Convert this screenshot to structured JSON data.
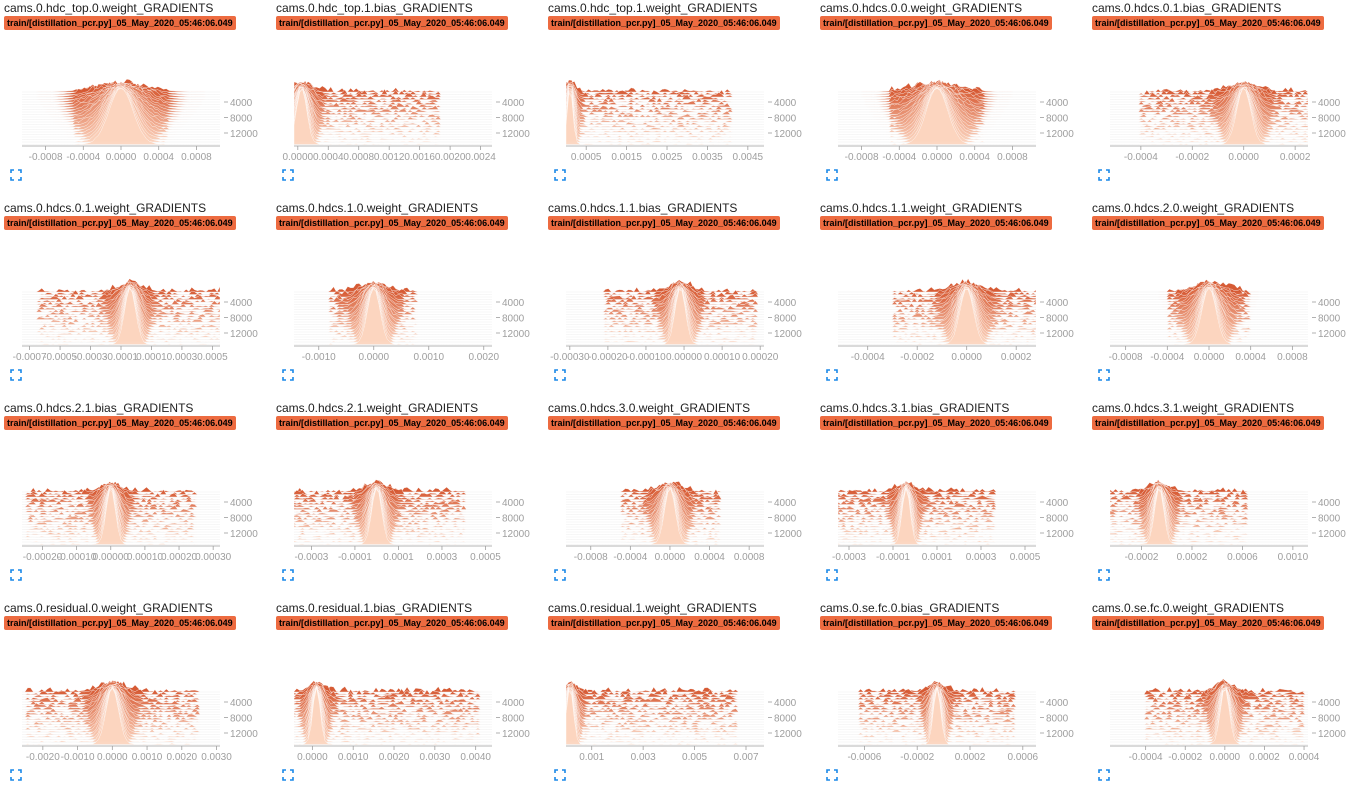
{
  "run_tag": "train/[distillation_pcr.py]_05_May_2020_05:46:06.049",
  "icons": {
    "expand": "expand-icon"
  },
  "colors": {
    "badge": "#ed6b40",
    "dark": "#d4522a",
    "light": "#fcd5bf",
    "axis": "#9e9e9e"
  },
  "chart_data": [
    {
      "type": "histogram-offset",
      "title": "cams.0.hdc_top.0.weight_GRADIENTS",
      "xlim": [
        -0.00105,
        0.00105
      ],
      "center": 0.0,
      "width": 0.00028,
      "spread": 0.0005,
      "xticks": [
        -0.0008,
        -0.0004,
        0.0,
        0.0004,
        0.0008
      ],
      "xtick_labels": [
        "-0.0008",
        "-0.0004",
        "0.0000",
        "0.0004",
        "0.0008"
      ],
      "ylabels": [
        "4000",
        "8000",
        "12000"
      ]
    },
    {
      "type": "histogram-offset",
      "title": "cams.0.hdc_top.1.bias_GRADIENTS",
      "xlim": [
        -5e-05,
        0.00255
      ],
      "center": 5e-05,
      "width": 0.00015,
      "spread": 0.0018,
      "xticks": [
        0.0,
        0.0004,
        0.0008,
        0.0012,
        0.0016,
        0.002,
        0.0024
      ],
      "xtick_labels": [
        "0.0000",
        "0.0004",
        "0.0008",
        "0.0012",
        "0.0016",
        "0.0020",
        "0.0024"
      ],
      "ylabels": [
        "4000",
        "8000",
        "12000"
      ]
    },
    {
      "type": "histogram-offset",
      "title": "cams.0.hdc_top.1.weight_GRADIENTS",
      "xlim": [
        0.0,
        0.0049
      ],
      "center": 0.0001,
      "width": 0.00015,
      "spread": 0.004,
      "xticks": [
        0.0005,
        0.0015,
        0.0025,
        0.0035,
        0.0045
      ],
      "xtick_labels": [
        "0.0005",
        "0.0015",
        "0.0025",
        "0.0035",
        "0.0045"
      ],
      "ylabels": [
        "4000",
        "8000",
        "12000"
      ]
    },
    {
      "type": "histogram-offset",
      "title": "cams.0.hdcs.0.0.weight_GRADIENTS",
      "xlim": [
        -0.00105,
        0.00105
      ],
      "center": 0.0,
      "width": 0.00025,
      "spread": 0.0005,
      "xticks": [
        -0.0008,
        -0.0004,
        0.0,
        0.0004,
        0.0008
      ],
      "xtick_labels": [
        "-0.0008",
        "-0.0004",
        "0.0000",
        "0.0004",
        "0.0008"
      ],
      "ylabels": [
        "4000",
        "8000",
        "12000"
      ]
    },
    {
      "type": "histogram-offset",
      "title": "cams.0.hdcs.0.1.bias_GRADIENTS",
      "xlim": [
        -0.00052,
        0.00025
      ],
      "center": 0.0,
      "width": 6e-05,
      "spread": 0.0004,
      "xticks": [
        -0.0004,
        -0.0002,
        0.0,
        0.0002
      ],
      "xtick_labels": [
        "-0.0004",
        "-0.0002",
        "0.0000",
        "0.0002"
      ],
      "ylabels": [
        "4000",
        "8000",
        "12000"
      ]
    },
    {
      "type": "histogram-offset",
      "title": "cams.0.hdcs.0.1.weight_GRADIENTS",
      "xlim": [
        -0.00075,
        0.00055
      ],
      "center": -4e-05,
      "width": 8e-05,
      "spread": 0.0006,
      "xticks": [
        -0.0007,
        -0.0005,
        -0.0003,
        -0.0001,
        0.0001,
        0.0003,
        0.0005
      ],
      "xtick_labels": [
        "-0.0007",
        "-0.0005",
        "-0.0003",
        "-0.0001",
        "0.0001",
        "0.0003",
        "0.0005"
      ],
      "ylabels": [
        "4000",
        "8000",
        "12000"
      ]
    },
    {
      "type": "histogram-offset",
      "title": "cams.0.hdcs.1.0.weight_GRADIENTS",
      "xlim": [
        -0.00145,
        0.00215
      ],
      "center": 0.0,
      "width": 0.00025,
      "spread": 0.0008,
      "xticks": [
        -0.001,
        0.0,
        0.001,
        0.002
      ],
      "xtick_labels": [
        "-0.0010",
        "0.0000",
        "0.0010",
        "0.0020"
      ],
      "ylabels": [
        "4000",
        "8000",
        "12000"
      ]
    },
    {
      "type": "histogram-offset",
      "title": "cams.0.hdcs.1.1.bias_GRADIENTS",
      "xlim": [
        -0.00031,
        0.00021
      ],
      "center": -1e-05,
      "width": 3e-05,
      "spread": 0.0002,
      "xticks": [
        -0.0003,
        -0.0002,
        -0.0001,
        0.0,
        0.0001,
        0.0002
      ],
      "xtick_labels": [
        "-0.00030",
        "-0.00020",
        "-0.00010",
        "0.00000",
        "0.00010",
        "0.00020"
      ],
      "ylabels": [
        "4000",
        "8000",
        "12000"
      ]
    },
    {
      "type": "histogram-offset",
      "title": "cams.0.hdcs.1.1.weight_GRADIENTS",
      "xlim": [
        -0.00052,
        0.00028
      ],
      "center": 0.0,
      "width": 6e-05,
      "spread": 0.0003,
      "xticks": [
        -0.0004,
        -0.0002,
        0.0,
        0.0002
      ],
      "xtick_labels": [
        "-0.0004",
        "-0.0002",
        "0.0000",
        "0.0002"
      ],
      "ylabels": [
        "4000",
        "8000",
        "12000"
      ]
    },
    {
      "type": "histogram-offset",
      "title": "cams.0.hdcs.2.0.weight_GRADIENTS",
      "xlim": [
        -0.00095,
        0.00095
      ],
      "center": 0.0,
      "width": 0.00015,
      "spread": 0.0004,
      "xticks": [
        -0.0008,
        -0.0004,
        0.0,
        0.0004,
        0.0008
      ],
      "xtick_labels": [
        "-0.0008",
        "-0.0004",
        "0.0000",
        "0.0004",
        "0.0008"
      ],
      "ylabels": [
        "4000",
        "8000",
        "12000"
      ]
    },
    {
      "type": "histogram-offset",
      "title": "cams.0.hdcs.2.1.bias_GRADIENTS",
      "xlim": [
        -0.00026,
        0.00032
      ],
      "center": 0.0,
      "width": 3e-05,
      "spread": 0.00025,
      "xticks": [
        -0.0002,
        -0.0001,
        0.0,
        0.0001,
        0.0002,
        0.0003
      ],
      "xtick_labels": [
        "-0.00020",
        "-0.00010",
        "0.00000",
        "0.00010",
        "0.00020",
        "0.00030"
      ],
      "ylabels": [
        "4000",
        "8000",
        "12000"
      ]
    },
    {
      "type": "histogram-offset",
      "title": "cams.0.hdcs.2.1.weight_GRADIENTS",
      "xlim": [
        -0.00038,
        0.00053
      ],
      "center": 0.0,
      "width": 5e-05,
      "spread": 0.0004,
      "xticks": [
        -0.0003,
        -0.0001,
        0.0001,
        0.0003,
        0.0005
      ],
      "xtick_labels": [
        "-0.0003",
        "-0.0001",
        "0.0001",
        "0.0003",
        "0.0005"
      ],
      "ylabels": [
        "4000",
        "8000",
        "12000"
      ]
    },
    {
      "type": "histogram-offset",
      "title": "cams.0.hdcs.3.0.weight_GRADIENTS",
      "xlim": [
        -0.00105,
        0.00095
      ],
      "center": 0.0,
      "width": 0.00012,
      "spread": 0.0005,
      "xticks": [
        -0.0008,
        -0.0004,
        0.0,
        0.0004,
        0.0008
      ],
      "xtick_labels": [
        "-0.0008",
        "-0.0004",
        "0.0000",
        "0.0004",
        "0.0008"
      ],
      "ylabels": [
        "4000",
        "8000",
        "12000"
      ]
    },
    {
      "type": "histogram-offset",
      "title": "cams.0.hdcs.3.1.bias_GRADIENTS",
      "xlim": [
        -0.00035,
        0.00055
      ],
      "center": -4e-05,
      "width": 4e-05,
      "spread": 0.0004,
      "xticks": [
        -0.0003,
        -0.0001,
        0.0001,
        0.0003,
        0.0005
      ],
      "xtick_labels": [
        "-0.0003",
        "-0.0001",
        "0.0001",
        "0.0003",
        "0.0005"
      ],
      "ylabels": [
        "4000",
        "8000",
        "12000"
      ]
    },
    {
      "type": "histogram-offset",
      "title": "cams.0.hdcs.3.1.weight_GRADIENTS",
      "xlim": [
        -0.00045,
        0.00112
      ],
      "center": -6e-05,
      "width": 8e-05,
      "spread": 0.0007,
      "xticks": [
        -0.0002,
        0.0002,
        0.0006,
        0.001
      ],
      "xtick_labels": [
        "-0.0002",
        "0.0002",
        "0.0006",
        "0.0010"
      ],
      "ylabels": [
        "4000",
        "8000",
        "12000"
      ]
    },
    {
      "type": "histogram-offset",
      "title": "cams.0.residual.0.weight_GRADIENTS",
      "xlim": [
        -0.0026,
        0.0031
      ],
      "center": 0.0,
      "width": 0.0004,
      "spread": 0.0025,
      "xticks": [
        -0.002,
        -0.001,
        0.0,
        0.001,
        0.002,
        0.003
      ],
      "xtick_labels": [
        "-0.0020",
        "-0.0010",
        "0.0000",
        "0.0010",
        "0.0020",
        "0.0030"
      ],
      "ylabels": [
        "4000",
        "8000",
        "12000"
      ]
    },
    {
      "type": "histogram-offset",
      "title": "cams.0.residual.1.bias_GRADIENTS",
      "xlim": [
        -0.00045,
        0.0044
      ],
      "center": 0.0001,
      "width": 0.0002,
      "spread": 0.004,
      "xticks": [
        0.0,
        0.001,
        0.002,
        0.003,
        0.004
      ],
      "xtick_labels": [
        "0.0000",
        "0.0010",
        "0.0020",
        "0.0030",
        "0.0040"
      ],
      "ylabels": [
        "4000",
        "8000",
        "12000"
      ]
    },
    {
      "type": "histogram-offset",
      "title": "cams.0.residual.1.weight_GRADIENTS",
      "xlim": [
        0.0,
        0.0077
      ],
      "center": 0.00015,
      "width": 0.0003,
      "spread": 0.0065,
      "xticks": [
        0.001,
        0.003,
        0.005,
        0.007
      ],
      "xtick_labels": [
        "0.001",
        "0.003",
        "0.005",
        "0.007"
      ],
      "ylabels": [
        "4000",
        "8000",
        "12000"
      ]
    },
    {
      "type": "histogram-offset",
      "title": "cams.0.se.fc.0.bias_GRADIENTS",
      "xlim": [
        -0.0008,
        0.0007
      ],
      "center": -5e-05,
      "width": 6e-05,
      "spread": 0.0006,
      "xticks": [
        -0.0006,
        -0.0002,
        0.0002,
        0.0006
      ],
      "xtick_labels": [
        "-0.0006",
        "-0.0002",
        "0.0002",
        "0.0006"
      ],
      "ylabels": [
        "4000",
        "8000",
        "12000"
      ]
    },
    {
      "type": "histogram-offset",
      "title": "cams.0.se.fc.0.weight_GRADIENTS",
      "xlim": [
        -0.00058,
        0.00042
      ],
      "center": 0.0,
      "width": 5e-05,
      "spread": 0.0004,
      "xticks": [
        -0.0004,
        -0.0002,
        0.0,
        0.0002,
        0.0004
      ],
      "xtick_labels": [
        "-0.0004",
        "-0.0002",
        "0.0000",
        "0.0002",
        "0.0004"
      ],
      "ylabels": [
        "4000",
        "8000",
        "12000"
      ]
    }
  ]
}
